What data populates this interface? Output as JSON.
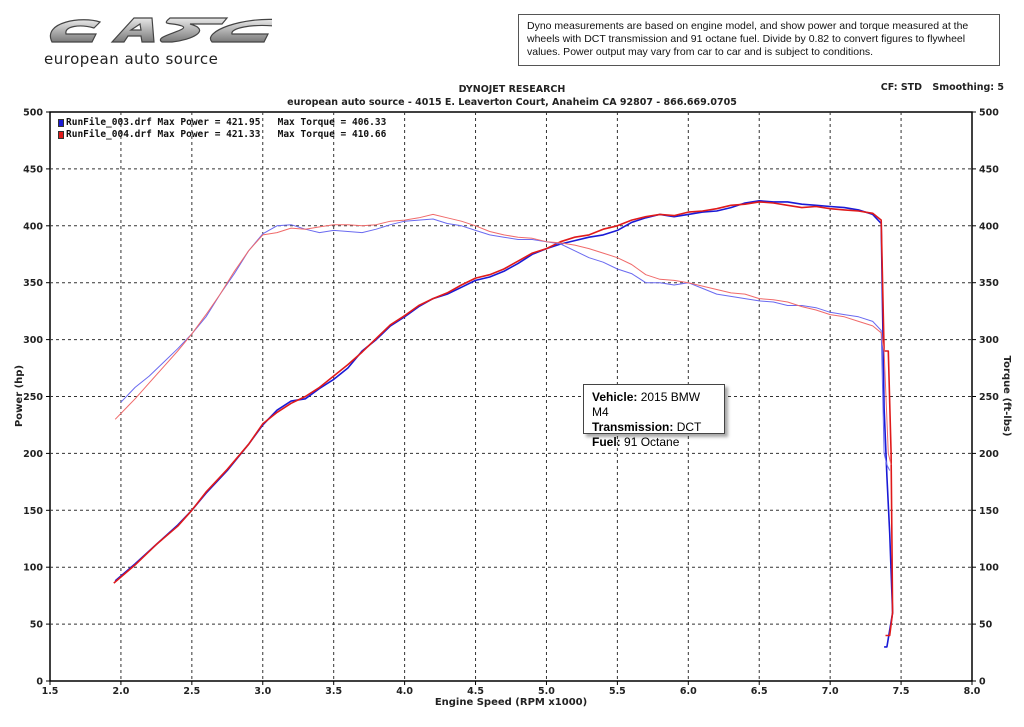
{
  "logo": {
    "mark": "eas",
    "tagline": "european auto source"
  },
  "disclaimer": "Dyno measurements are based on engine model, and show power and torque measured at the wheels with DCT transmission and 91 octane fuel. Divide by 0.82 to convert figures to flywheel values. Power output may vary from car to car and is subject to conditions.",
  "header": {
    "line1": "DYNOJET RESEARCH",
    "line2": "european auto source - 4015 E. Leaverton Court, Anaheim CA 92807 - 866.669.0705",
    "cf": "CF: STD",
    "smoothing": "Smoothing: 5"
  },
  "legend": [
    {
      "text": "RunFile_003.drf Max Power = 421.95   Max Torque = 406.33",
      "color": "#1a1ad6"
    },
    {
      "text": "RunFile_004.drf Max Power = 421.33   Max Torque = 410.66",
      "color": "#e01a1a"
    }
  ],
  "callout": {
    "vehicle_label": "Vehicle:",
    "vehicle": "2015 BMW M4",
    "transmission_label": "Transmission:",
    "transmission": "DCT",
    "fuel_label": "Fuel:",
    "fuel": "91 Octane"
  },
  "chart_data": {
    "type": "line",
    "title": "DYNOJET RESEARCH",
    "xlabel": "Engine Speed (RPM x1000)",
    "ylabel": "Power (hp)",
    "y2label": "Torque (ft-lbs)",
    "xlim": [
      1.5,
      8.0
    ],
    "ylim": [
      0,
      500
    ],
    "x_ticks": [
      "1.5",
      "2.0",
      "2.5",
      "3.0",
      "3.5",
      "4.0",
      "4.5",
      "5.0",
      "5.5",
      "6.0",
      "6.5",
      "7.0",
      "7.5",
      "8.0"
    ],
    "y_ticks": [
      "0",
      "50",
      "100",
      "150",
      "200",
      "250",
      "300",
      "350",
      "400",
      "450",
      "500"
    ],
    "grid": true,
    "legend_position": "top-left",
    "series": [
      {
        "name": "RunFile_003.drf",
        "measure": "power",
        "color": "#1a1ad6",
        "style": "solid",
        "x": [
          1.96,
          2.1,
          2.25,
          2.4,
          2.5,
          2.6,
          2.75,
          2.9,
          3.0,
          3.1,
          3.2,
          3.3,
          3.4,
          3.5,
          3.6,
          3.7,
          3.8,
          3.9,
          4.0,
          4.1,
          4.2,
          4.3,
          4.4,
          4.5,
          4.6,
          4.7,
          4.8,
          4.9,
          5.0,
          5.1,
          5.2,
          5.3,
          5.4,
          5.5,
          5.6,
          5.7,
          5.8,
          5.9,
          6.0,
          6.1,
          6.2,
          6.3,
          6.4,
          6.5,
          6.6,
          6.7,
          6.8,
          6.9,
          7.0,
          7.1,
          7.2,
          7.3,
          7.36,
          7.38,
          7.4,
          7.42,
          7.44,
          7.4,
          7.38
        ],
        "y": [
          88,
          103,
          120,
          137,
          150,
          165,
          185,
          208,
          225,
          238,
          246,
          248,
          257,
          265,
          275,
          290,
          300,
          312,
          320,
          329,
          336,
          340,
          346,
          352,
          355,
          360,
          367,
          375,
          380,
          384,
          387,
          390,
          392,
          396,
          403,
          407,
          410,
          408,
          410,
          412,
          413,
          416,
          420,
          422,
          421,
          421,
          419,
          418,
          417,
          416,
          414,
          410,
          402,
          240,
          180,
          130,
          60,
          30,
          30
        ]
      },
      {
        "name": "RunFile_004.drf",
        "measure": "power",
        "color": "#e01a1a",
        "style": "solid",
        "x": [
          1.95,
          2.1,
          2.25,
          2.4,
          2.5,
          2.6,
          2.75,
          2.9,
          3.0,
          3.1,
          3.2,
          3.3,
          3.4,
          3.5,
          3.6,
          3.7,
          3.8,
          3.9,
          4.0,
          4.1,
          4.2,
          4.3,
          4.4,
          4.5,
          4.6,
          4.7,
          4.8,
          4.9,
          5.0,
          5.1,
          5.2,
          5.3,
          5.4,
          5.5,
          5.6,
          5.7,
          5.8,
          5.9,
          6.0,
          6.1,
          6.2,
          6.3,
          6.4,
          6.5,
          6.6,
          6.7,
          6.8,
          6.9,
          7.0,
          7.1,
          7.2,
          7.3,
          7.36,
          7.38,
          7.41,
          7.43,
          7.44,
          7.42,
          7.39
        ],
        "y": [
          86,
          102,
          120,
          136,
          150,
          166,
          186,
          208,
          226,
          236,
          244,
          250,
          258,
          268,
          278,
          289,
          301,
          313,
          321,
          330,
          336,
          341,
          348,
          354,
          357,
          362,
          369,
          376,
          380,
          386,
          390,
          392,
          397,
          400,
          405,
          408,
          410,
          409,
          412,
          413,
          415,
          418,
          419,
          421,
          420,
          418,
          416,
          417,
          415,
          414,
          413,
          411,
          405,
          290,
          290,
          200,
          60,
          40,
          40
        ]
      },
      {
        "name": "RunFile_003.drf",
        "measure": "torque",
        "color": "#6a6af0",
        "style": "thin",
        "x": [
          2.0,
          2.1,
          2.2,
          2.3,
          2.4,
          2.5,
          2.6,
          2.7,
          2.8,
          2.9,
          3.0,
          3.1,
          3.2,
          3.3,
          3.4,
          3.5,
          3.6,
          3.7,
          3.8,
          3.9,
          4.0,
          4.1,
          4.2,
          4.3,
          4.4,
          4.5,
          4.6,
          4.7,
          4.8,
          4.9,
          5.0,
          5.1,
          5.2,
          5.3,
          5.4,
          5.5,
          5.6,
          5.7,
          5.8,
          5.9,
          6.0,
          6.1,
          6.2,
          6.3,
          6.4,
          6.5,
          6.6,
          6.7,
          6.8,
          6.9,
          7.0,
          7.1,
          7.2,
          7.3,
          7.36,
          7.38,
          7.4,
          7.42
        ],
        "y": [
          245,
          258,
          268,
          280,
          292,
          305,
          320,
          340,
          358,
          378,
          393,
          400,
          401,
          397,
          394,
          396,
          395,
          394,
          397,
          401,
          404,
          405,
          406,
          402,
          400,
          396,
          392,
          390,
          388,
          388,
          386,
          384,
          378,
          372,
          368,
          362,
          358,
          350,
          350,
          348,
          350,
          345,
          340,
          338,
          336,
          334,
          333,
          330,
          330,
          328,
          324,
          322,
          320,
          316,
          308,
          200,
          190,
          185
        ]
      },
      {
        "name": "RunFile_004.drf",
        "measure": "torque",
        "color": "#f06a6a",
        "style": "thin",
        "x": [
          1.96,
          2.1,
          2.2,
          2.3,
          2.4,
          2.5,
          2.6,
          2.7,
          2.8,
          2.9,
          3.0,
          3.1,
          3.2,
          3.3,
          3.4,
          3.5,
          3.6,
          3.7,
          3.8,
          3.9,
          4.0,
          4.1,
          4.2,
          4.3,
          4.4,
          4.5,
          4.6,
          4.7,
          4.8,
          4.9,
          5.0,
          5.1,
          5.2,
          5.3,
          5.4,
          5.5,
          5.6,
          5.7,
          5.8,
          5.9,
          6.0,
          6.1,
          6.2,
          6.3,
          6.4,
          6.5,
          6.6,
          6.7,
          6.8,
          6.9,
          7.0,
          7.1,
          7.2,
          7.3,
          7.36,
          7.38,
          7.41,
          7.43
        ],
        "y": [
          230,
          248,
          262,
          276,
          290,
          305,
          322,
          340,
          360,
          378,
          392,
          394,
          398,
          397,
          399,
          401,
          401,
          400,
          401,
          404,
          405,
          407,
          410,
          407,
          404,
          400,
          395,
          392,
          390,
          389,
          386,
          385,
          383,
          380,
          376,
          372,
          366,
          357,
          353,
          352,
          350,
          347,
          344,
          341,
          340,
          336,
          335,
          333,
          329,
          326,
          322,
          320,
          316,
          312,
          306,
          290,
          200,
          190
        ]
      }
    ]
  }
}
